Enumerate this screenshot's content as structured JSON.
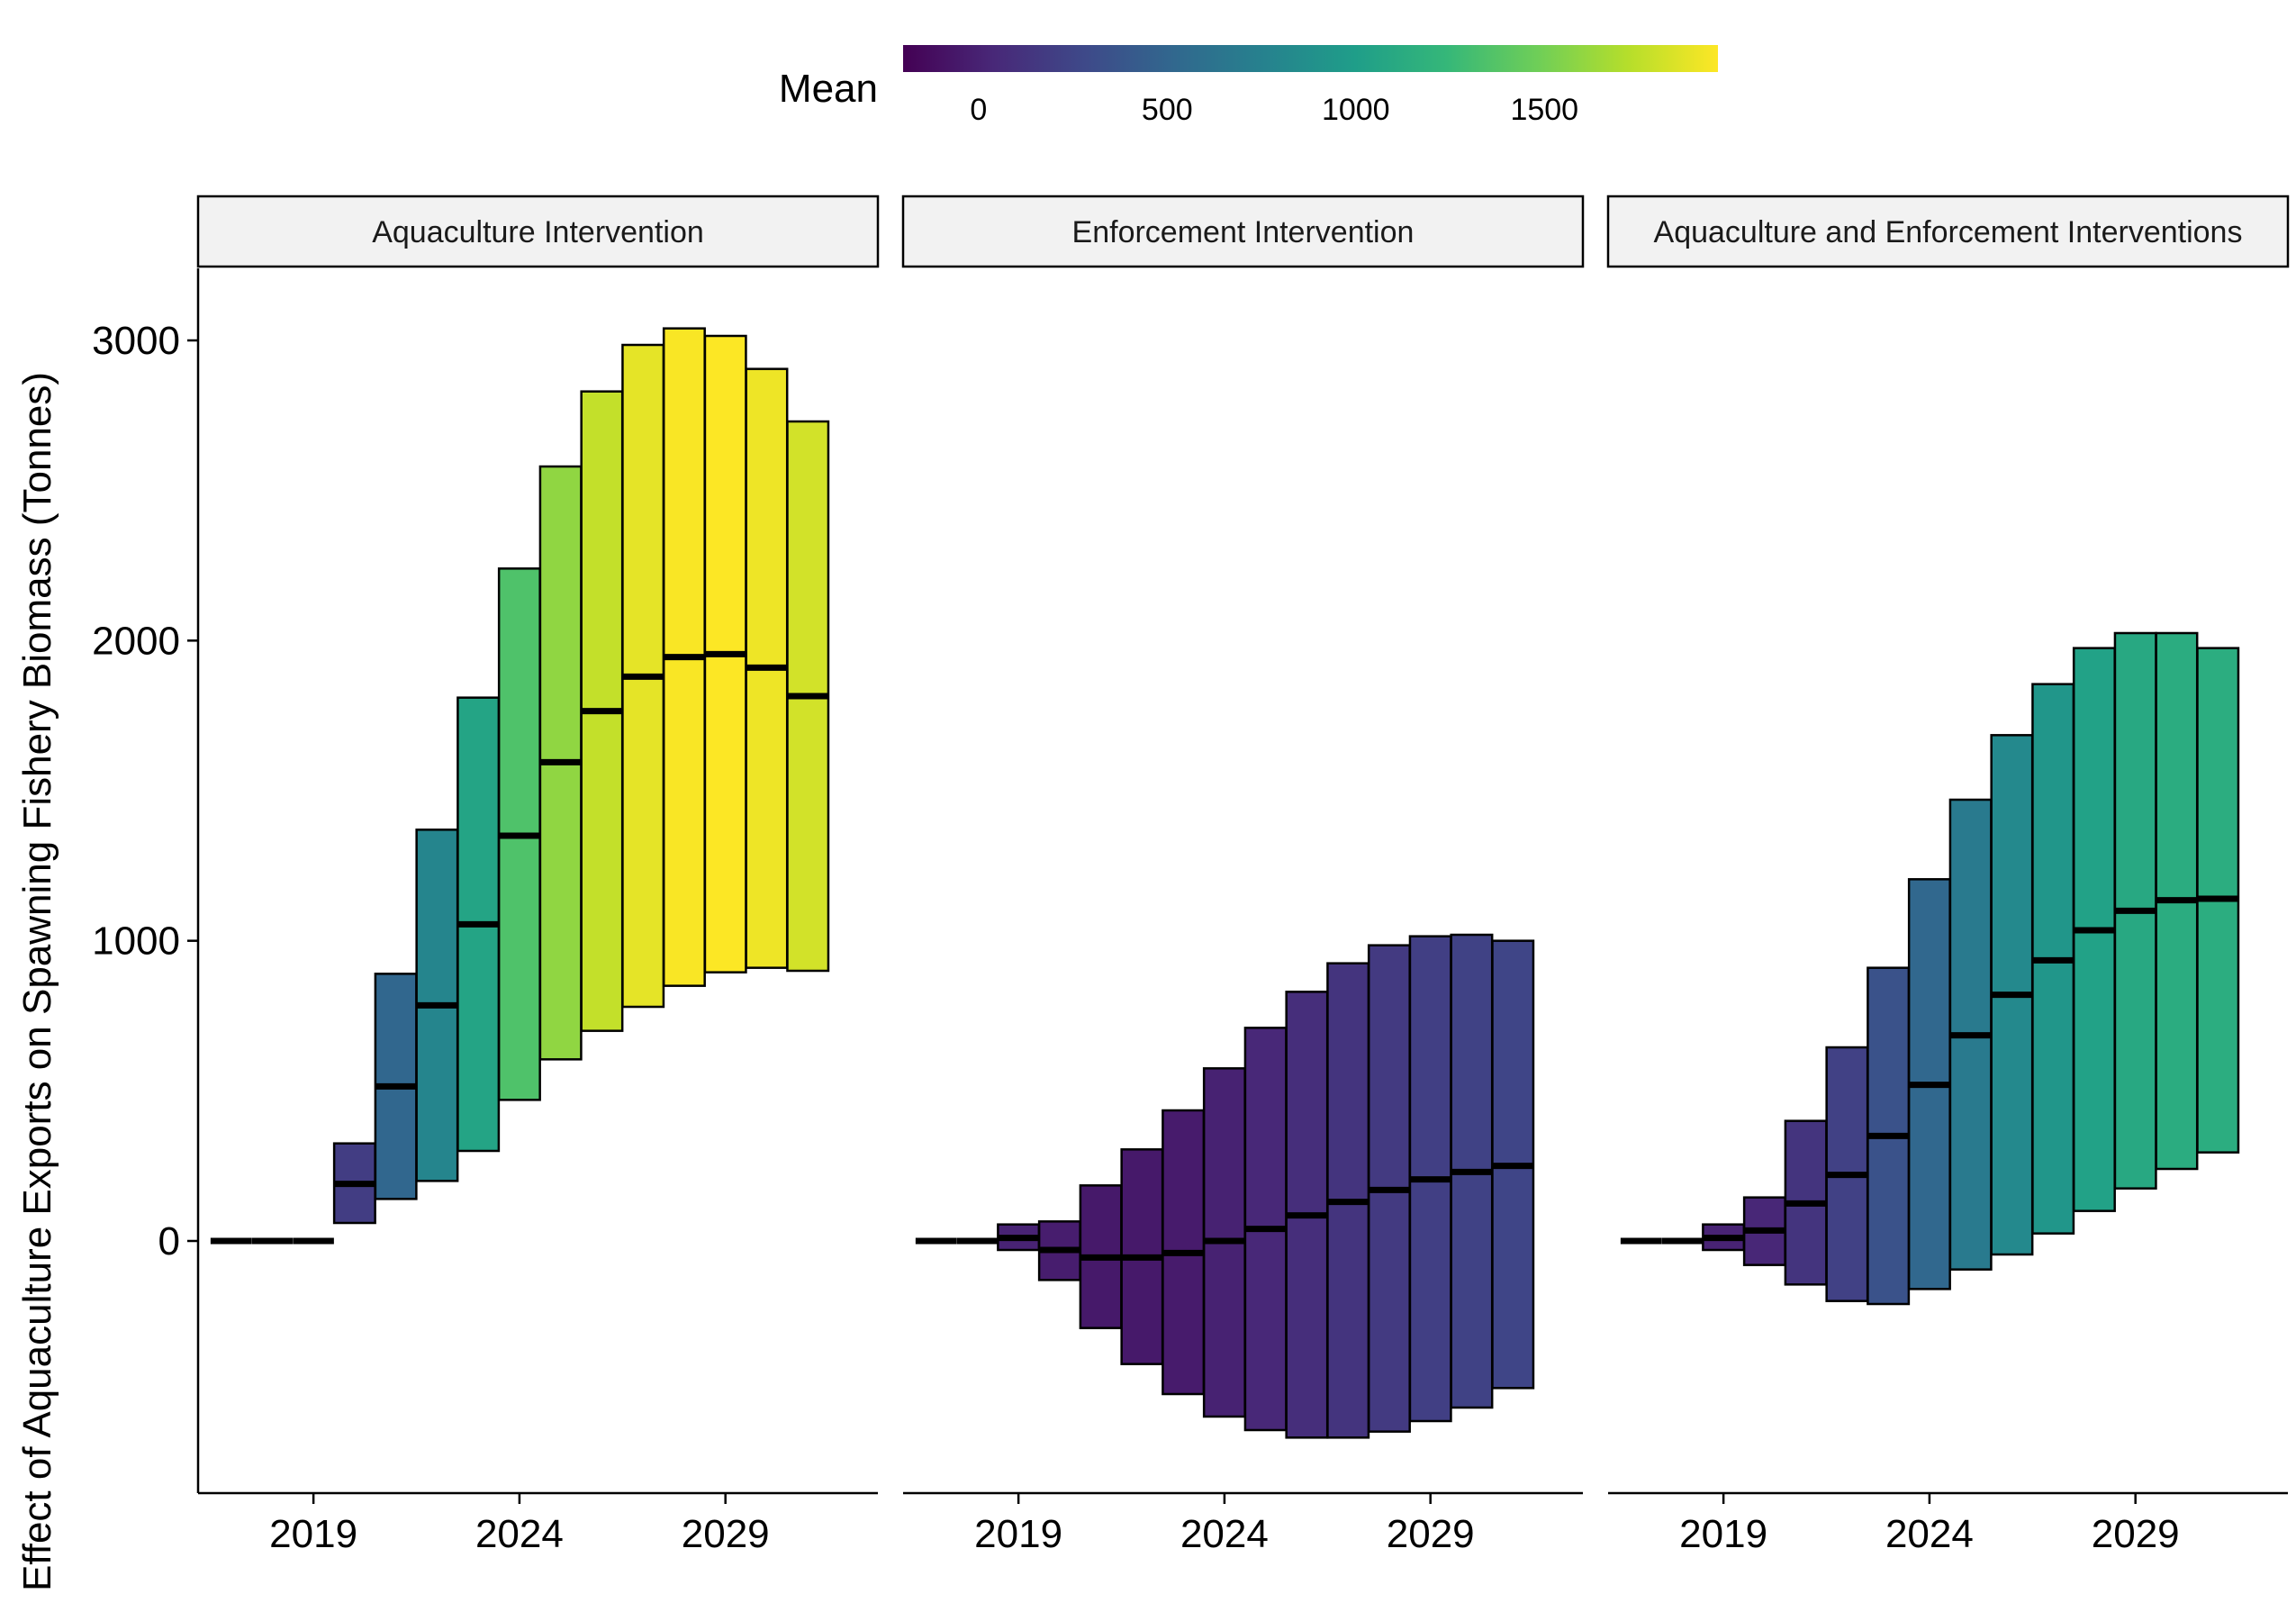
{
  "chart_data": {
    "type": "boxplot",
    "ylabel": "Effect of Aquaculture Exports on Spawning Fishery Biomass (Tonnes)",
    "xlabel": "",
    "y_ticks": [
      0,
      1000,
      2000,
      3000
    ],
    "y_tick_labels": [
      "0",
      "1000",
      "2000",
      "3000"
    ],
    "x_ticks": [
      2019,
      2024,
      2029
    ],
    "x_tick_labels": [
      "2019",
      "2024",
      "2029"
    ],
    "xlim": [
      2016.2,
      2032.7
    ],
    "ylim": [
      -840,
      3240
    ],
    "legend": {
      "title": "Mean",
      "position": "top",
      "scale": "viridis",
      "range": [
        -200,
        1960
      ],
      "ticks": [
        0,
        500,
        1000,
        1500
      ],
      "tick_labels": [
        "0",
        "500",
        "1000",
        "1500"
      ],
      "colors": [
        "#440154",
        "#482878",
        "#3e4989",
        "#31688e",
        "#26828e",
        "#1f9e89",
        "#35b779",
        "#6ece58",
        "#b5de2b",
        "#fde725"
      ]
    },
    "panels": [
      {
        "title": "Aquaculture Intervention",
        "boxes": [
          {
            "year": 2017,
            "low": 0,
            "high": 0,
            "mid": 0,
            "mean": 0
          },
          {
            "year": 2018,
            "low": 0,
            "high": 0,
            "mid": 0,
            "mean": 0
          },
          {
            "year": 2019,
            "low": 0,
            "high": 0,
            "mid": 0,
            "mean": 0
          },
          {
            "year": 2020,
            "low": 60,
            "high": 325,
            "mid": 190,
            "mean": 190
          },
          {
            "year": 2021,
            "low": 140,
            "high": 890,
            "mid": 515,
            "mean": 515
          },
          {
            "year": 2022,
            "low": 200,
            "high": 1370,
            "mid": 785,
            "mean": 785
          },
          {
            "year": 2023,
            "low": 300,
            "high": 1810,
            "mid": 1055,
            "mean": 1055
          },
          {
            "year": 2024,
            "low": 470,
            "high": 2240,
            "mid": 1350,
            "mean": 1350
          },
          {
            "year": 2025,
            "low": 605,
            "high": 2580,
            "mid": 1595,
            "mean": 1595
          },
          {
            "year": 2026,
            "low": 700,
            "high": 2830,
            "mid": 1765,
            "mean": 1765
          },
          {
            "year": 2027,
            "low": 780,
            "high": 2985,
            "mid": 1880,
            "mean": 1880
          },
          {
            "year": 2028,
            "low": 850,
            "high": 3040,
            "mid": 1945,
            "mean": 1945
          },
          {
            "year": 2029,
            "low": 895,
            "high": 3015,
            "mid": 1955,
            "mean": 1955
          },
          {
            "year": 2030,
            "low": 910,
            "high": 2905,
            "mid": 1910,
            "mean": 1910
          },
          {
            "year": 2031,
            "low": 900,
            "high": 2730,
            "mid": 1815,
            "mean": 1815
          }
        ]
      },
      {
        "title": "Enforcement Intervention",
        "boxes": [
          {
            "year": 2017,
            "low": 0,
            "high": 0,
            "mid": 0,
            "mean": 0
          },
          {
            "year": 2018,
            "low": 0,
            "high": 0,
            "mid": 0,
            "mean": 0
          },
          {
            "year": 2019,
            "low": -30,
            "high": 55,
            "mid": 10,
            "mean": 10
          },
          {
            "year": 2020,
            "low": -130,
            "high": 65,
            "mid": -30,
            "mean": -30
          },
          {
            "year": 2021,
            "low": -290,
            "high": 185,
            "mid": -55,
            "mean": -55
          },
          {
            "year": 2022,
            "low": -410,
            "high": 305,
            "mid": -55,
            "mean": -55
          },
          {
            "year": 2023,
            "low": -510,
            "high": 435,
            "mid": -40,
            "mean": -40
          },
          {
            "year": 2024,
            "low": -585,
            "high": 575,
            "mid": 0,
            "mean": 0
          },
          {
            "year": 2025,
            "low": -630,
            "high": 710,
            "mid": 40,
            "mean": 40
          },
          {
            "year": 2026,
            "low": -655,
            "high": 830,
            "mid": 85,
            "mean": 85
          },
          {
            "year": 2027,
            "low": -655,
            "high": 925,
            "mid": 130,
            "mean": 130
          },
          {
            "year": 2028,
            "low": -635,
            "high": 985,
            "mid": 170,
            "mean": 170
          },
          {
            "year": 2029,
            "low": -600,
            "high": 1015,
            "mid": 205,
            "mean": 205
          },
          {
            "year": 2030,
            "low": -555,
            "high": 1020,
            "mid": 230,
            "mean": 230
          },
          {
            "year": 2031,
            "low": -490,
            "high": 1000,
            "mid": 250,
            "mean": 250
          }
        ]
      },
      {
        "title": "Aquaculture and Enforcement Interventions",
        "boxes": [
          {
            "year": 2017,
            "low": 0,
            "high": 0,
            "mid": 0,
            "mean": 0
          },
          {
            "year": 2018,
            "low": 0,
            "high": 0,
            "mid": 0,
            "mean": 0
          },
          {
            "year": 2019,
            "low": -30,
            "high": 55,
            "mid": 10,
            "mean": 10
          },
          {
            "year": 2020,
            "low": -80,
            "high": 145,
            "mid": 35,
            "mean": 35
          },
          {
            "year": 2021,
            "low": -145,
            "high": 400,
            "mid": 125,
            "mean": 125
          },
          {
            "year": 2022,
            "low": -200,
            "high": 645,
            "mid": 220,
            "mean": 220
          },
          {
            "year": 2023,
            "low": -210,
            "high": 910,
            "mid": 350,
            "mean": 350
          },
          {
            "year": 2024,
            "low": -160,
            "high": 1205,
            "mid": 520,
            "mean": 520
          },
          {
            "year": 2025,
            "low": -95,
            "high": 1470,
            "mid": 685,
            "mean": 685
          },
          {
            "year": 2026,
            "low": -45,
            "high": 1685,
            "mid": 820,
            "mean": 820
          },
          {
            "year": 2027,
            "low": 25,
            "high": 1855,
            "mid": 935,
            "mean": 935
          },
          {
            "year": 2028,
            "low": 100,
            "high": 1975,
            "mid": 1035,
            "mean": 1035
          },
          {
            "year": 2029,
            "low": 175,
            "high": 2025,
            "mid": 1100,
            "mean": 1100
          },
          {
            "year": 2030,
            "low": 240,
            "high": 2025,
            "mid": 1135,
            "mean": 1135
          },
          {
            "year": 2031,
            "low": 295,
            "high": 1975,
            "mid": 1140,
            "mean": 1140
          }
        ]
      }
    ]
  }
}
